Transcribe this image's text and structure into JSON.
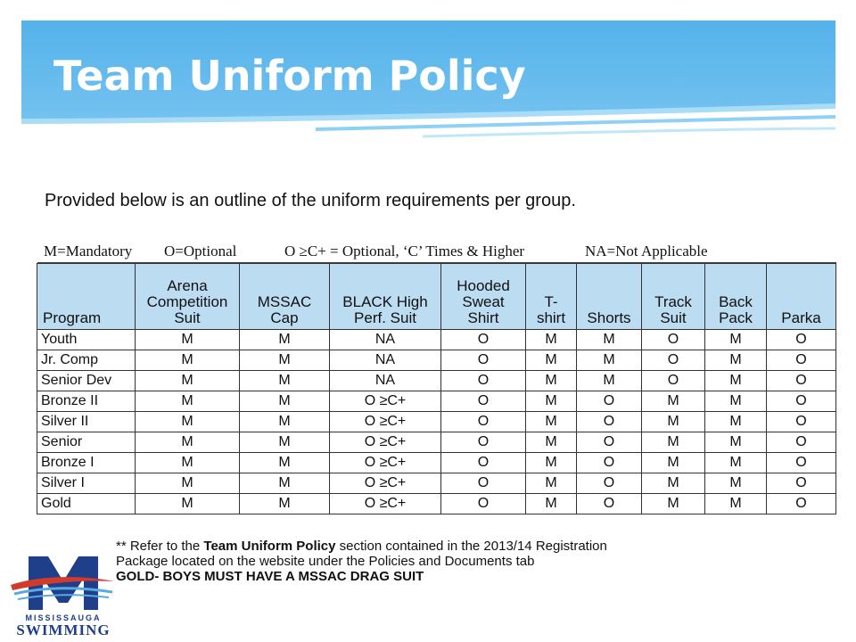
{
  "slide": {
    "title": "Team Uniform Policy",
    "intro": "Provided below is an outline of the uniform requirements per group."
  },
  "legend": {
    "mandatory": "M=Mandatory",
    "optional": "O=Optional",
    "times": "O ≥C+ = Optional, ‘C’ Times & Higher",
    "na": "NA=Not Applicable"
  },
  "table": {
    "headers": [
      [
        "Program"
      ],
      [
        "Arena",
        "Competition",
        "Suit"
      ],
      [
        "MSSAC",
        "Cap"
      ],
      [
        "BLACK High",
        "Perf. Suit"
      ],
      [
        "Hooded",
        "Sweat",
        "Shirt"
      ],
      [
        "T-",
        "shirt"
      ],
      [
        "Shorts"
      ],
      [
        "Track",
        "Suit"
      ],
      [
        "Back",
        "Pack"
      ],
      [
        "Parka"
      ]
    ],
    "rows": [
      [
        "Youth",
        "M",
        "M",
        "NA",
        "O",
        "M",
        "M",
        "O",
        "M",
        "O"
      ],
      [
        "Jr. Comp",
        "M",
        "M",
        "NA",
        "O",
        "M",
        "M",
        "O",
        "M",
        "O"
      ],
      [
        "Senior Dev",
        "M",
        "M",
        "NA",
        "O",
        "M",
        "M",
        "O",
        "M",
        "O"
      ],
      [
        "Bronze II",
        "M",
        "M",
        "O ≥C+",
        "O",
        "M",
        "O",
        "M",
        "M",
        "O"
      ],
      [
        "Silver II",
        "M",
        "M",
        "O ≥C+",
        "O",
        "M",
        "O",
        "M",
        "M",
        "O"
      ],
      [
        "Senior",
        "M",
        "M",
        "O ≥C+",
        "O",
        "M",
        "O",
        "M",
        "M",
        "O"
      ],
      [
        "Bronze I",
        "M",
        "M",
        "O ≥C+",
        "O",
        "M",
        "O",
        "M",
        "M",
        "O"
      ],
      [
        "Silver I",
        "M",
        "M",
        "O ≥C+",
        "O",
        "M",
        "O",
        "M",
        "M",
        "O"
      ],
      [
        "Gold",
        "M",
        "M",
        "O ≥C+",
        "O",
        "M",
        "O",
        "M",
        "M",
        "O"
      ]
    ]
  },
  "footnote": {
    "line1_prefix": "** Refer to the ",
    "line1_bold": "Team Uniform Policy",
    "line1_suffix": " section contained in the 2013/14 Registration",
    "line2": "Package located on the website under the Policies and Documents tab",
    "line3": "GOLD- BOYS MUST HAVE A MSSAC DRAG SUIT"
  },
  "logo": {
    "line1": "MISSISSAUGA",
    "line2": "SWIMMING",
    "colors": {
      "blue": "#1f3f8a",
      "red": "#d23b2a",
      "light_blue": "#5aa9e0"
    }
  },
  "colors": {
    "banner_top": "#56b3ea",
    "banner_bottom": "#8fd0f6",
    "header_fill": "#bcdcf2"
  }
}
